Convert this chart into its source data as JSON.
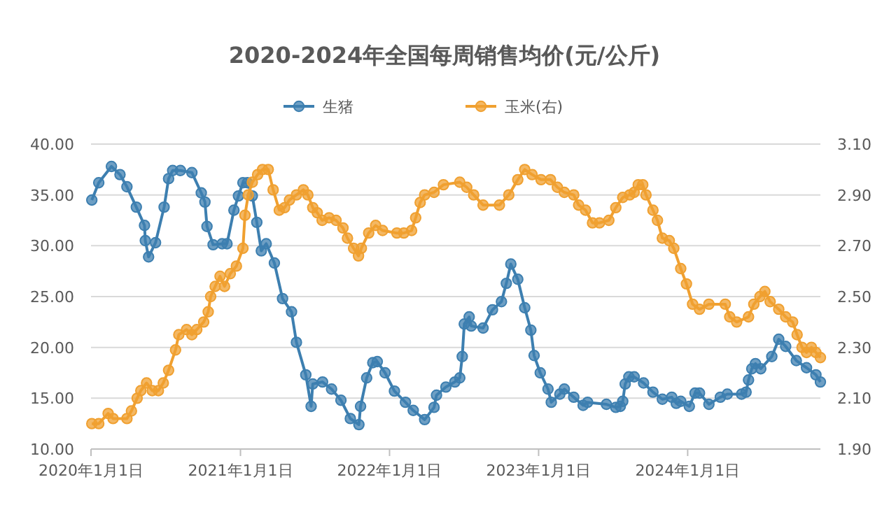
{
  "chart_data": {
    "type": "line",
    "title": "2020-2024年全国每周销售均价(元/公斤)",
    "legend": "top",
    "grid": "y",
    "marker": "circle",
    "line_style": "solid",
    "xlim": [
      "2020-01-01",
      "2024-11-21"
    ],
    "xticks": [
      {
        "value": "2020-01-01",
        "label": "2020年1月1日"
      },
      {
        "value": "2021-01-01",
        "label": "2021年1月1日"
      },
      {
        "value": "2022-01-01",
        "label": "2022年1月1日"
      },
      {
        "value": "2023-01-01",
        "label": "2023年1月1日"
      },
      {
        "value": "2024-01-01",
        "label": "2024年1月1日"
      }
    ],
    "ylim": [
      10,
      40
    ],
    "yticks": [
      {
        "value": 10,
        "label": "10.00"
      },
      {
        "value": 15,
        "label": "15.00"
      },
      {
        "value": 20,
        "label": "20.00"
      },
      {
        "value": 25,
        "label": "25.00"
      },
      {
        "value": 30,
        "label": "30.00"
      },
      {
        "value": 35,
        "label": "35.00"
      },
      {
        "value": 40,
        "label": "40.00"
      }
    ],
    "y2lim": [
      1.9,
      3.1
    ],
    "y2ticks": [
      {
        "value": 1.9,
        "label": "1.90"
      },
      {
        "value": 2.1,
        "label": "2.10"
      },
      {
        "value": 2.3,
        "label": "2.30"
      },
      {
        "value": 2.5,
        "label": "2.50"
      },
      {
        "value": 2.7,
        "label": "2.70"
      },
      {
        "value": 2.9,
        "label": "2.90"
      },
      {
        "value": 3.1,
        "label": "3.10"
      }
    ],
    "series": [
      {
        "name": "生猪",
        "color": "#3d7fb0",
        "x": [
          "2020-01-03",
          "2020-01-20",
          "2020-02-20",
          "2020-03-12",
          "2020-03-29",
          "2020-04-21",
          "2020-05-11",
          "2020-05-13",
          "2020-05-21",
          "2020-06-07",
          "2020-06-28",
          "2020-07-09",
          "2020-07-19",
          "2020-08-07",
          "2020-09-04",
          "2020-09-27",
          "2020-10-06",
          "2020-10-11",
          "2020-10-26",
          "2020-11-17",
          "2020-11-29",
          "2020-12-16",
          "2020-12-27",
          "2021-01-07",
          "2021-01-18",
          "2021-01-30",
          "2021-02-10",
          "2021-02-21",
          "2021-03-05",
          "2021-03-25",
          "2021-04-14",
          "2021-05-06",
          "2021-05-18",
          "2021-06-10",
          "2021-06-23",
          "2021-06-27",
          "2021-07-21",
          "2021-08-12",
          "2021-09-04",
          "2021-09-27",
          "2021-10-18",
          "2021-10-22",
          "2021-11-06",
          "2021-11-21",
          "2021-12-02",
          "2021-12-21",
          "2022-01-13",
          "2022-02-09",
          "2022-02-28",
          "2022-03-28",
          "2022-04-20",
          "2022-04-26",
          "2022-05-19",
          "2022-06-10",
          "2022-06-22",
          "2022-06-28",
          "2022-07-03",
          "2022-07-15",
          "2022-07-20",
          "2022-08-18",
          "2022-09-10",
          "2022-10-02",
          "2022-10-14",
          "2022-10-25",
          "2022-11-11",
          "2022-11-28",
          "2022-12-13",
          "2022-12-21",
          "2023-01-05",
          "2023-01-24",
          "2023-02-01",
          "2023-02-22",
          "2023-03-05",
          "2023-03-28",
          "2023-04-20",
          "2023-05-01",
          "2023-06-16",
          "2023-07-09",
          "2023-07-20",
          "2023-07-26",
          "2023-08-01",
          "2023-08-10",
          "2023-08-23",
          "2023-09-15",
          "2023-10-08",
          "2023-10-31",
          "2023-11-23",
          "2023-12-04",
          "2023-12-15",
          "2024-01-05",
          "2024-01-19",
          "2024-01-30",
          "2024-02-22",
          "2024-03-21",
          "2024-04-07",
          "2024-05-12",
          "2024-05-23",
          "2024-05-29",
          "2024-06-06",
          "2024-06-15",
          "2024-06-28",
          "2024-07-25",
          "2024-08-11",
          "2024-08-28",
          "2024-09-23",
          "2024-10-18",
          "2024-11-10",
          "2024-11-21"
        ],
        "values": [
          34.5,
          36.2,
          37.8,
          37.0,
          35.8,
          33.8,
          32.0,
          30.5,
          28.9,
          30.3,
          33.8,
          36.6,
          37.4,
          37.4,
          37.2,
          35.2,
          34.3,
          31.9,
          30.1,
          30.2,
          30.2,
          33.5,
          34.9,
          36.2,
          36.2,
          34.9,
          32.3,
          29.5,
          30.2,
          28.3,
          24.8,
          23.5,
          20.5,
          17.3,
          14.2,
          16.4,
          16.6,
          15.9,
          14.8,
          13.0,
          12.4,
          14.2,
          17.0,
          18.5,
          18.6,
          17.5,
          15.7,
          14.6,
          13.8,
          12.9,
          14.1,
          15.3,
          16.1,
          16.6,
          17.0,
          19.1,
          22.3,
          23.0,
          22.1,
          21.9,
          23.7,
          24.5,
          26.3,
          28.2,
          26.7,
          23.9,
          21.7,
          19.2,
          17.5,
          15.9,
          14.6,
          15.4,
          15.9,
          15.1,
          14.3,
          14.6,
          14.4,
          14.1,
          14.2,
          14.7,
          16.4,
          17.1,
          17.1,
          16.5,
          15.6,
          14.9,
          15.1,
          14.5,
          14.7,
          14.2,
          15.5,
          15.5,
          14.4,
          15.1,
          15.4,
          15.4,
          15.6,
          16.8,
          17.9,
          18.4,
          17.9,
          19.1,
          20.8,
          20.1,
          18.7,
          18.0,
          17.3,
          16.6
        ]
      },
      {
        "name": "玉米(右)",
        "color": "#f0a030",
        "axis": "y2",
        "x": [
          "2020-01-03",
          "2020-01-20",
          "2020-02-12",
          "2020-02-24",
          "2020-03-29",
          "2020-04-09",
          "2020-04-23",
          "2020-05-02",
          "2020-05-16",
          "2020-05-30",
          "2020-06-14",
          "2020-06-26",
          "2020-07-09",
          "2020-07-26",
          "2020-08-03",
          "2020-08-22",
          "2020-09-04",
          "2020-09-16",
          "2020-10-03",
          "2020-10-14",
          "2020-10-20",
          "2020-10-31",
          "2020-11-12",
          "2020-11-23",
          "2020-12-07",
          "2020-12-22",
          "2021-01-07",
          "2021-01-12",
          "2021-01-20",
          "2021-01-30",
          "2021-02-12",
          "2021-02-24",
          "2021-03-10",
          "2021-03-22",
          "2021-04-06",
          "2021-04-19",
          "2021-05-01",
          "2021-05-18",
          "2021-06-04",
          "2021-06-15",
          "2021-06-27",
          "2021-07-08",
          "2021-07-20",
          "2021-08-06",
          "2021-08-23",
          "2021-09-09",
          "2021-09-20",
          "2021-10-05",
          "2021-10-17",
          "2021-10-24",
          "2021-11-11",
          "2021-11-28",
          "2021-12-15",
          "2022-01-19",
          "2022-02-05",
          "2022-02-24",
          "2022-03-06",
          "2022-03-17",
          "2022-03-28",
          "2022-04-20",
          "2022-05-13",
          "2022-06-22",
          "2022-07-09",
          "2022-07-26",
          "2022-08-18",
          "2022-09-27",
          "2022-10-20",
          "2022-11-11",
          "2022-11-28",
          "2022-12-16",
          "2023-01-07",
          "2023-01-30",
          "2023-02-16",
          "2023-03-05",
          "2023-03-28",
          "2023-04-09",
          "2023-04-26",
          "2023-05-13",
          "2023-05-30",
          "2023-06-22",
          "2023-07-09",
          "2023-07-26",
          "2023-08-12",
          "2023-08-23",
          "2023-09-02",
          "2023-09-13",
          "2023-09-21",
          "2023-10-08",
          "2023-10-19",
          "2023-10-31",
          "2023-11-17",
          "2023-11-28",
          "2023-12-15",
          "2023-12-29",
          "2024-01-13",
          "2024-01-30",
          "2024-02-22",
          "2024-04-02",
          "2024-04-13",
          "2024-04-30",
          "2024-05-29",
          "2024-06-11",
          "2024-06-26",
          "2024-07-08",
          "2024-07-21",
          "2024-08-11",
          "2024-08-28",
          "2024-09-14",
          "2024-09-25",
          "2024-10-07",
          "2024-10-18",
          "2024-10-30",
          "2024-11-10",
          "2024-11-21"
        ],
        "values": [
          2.0,
          2.0,
          2.04,
          2.02,
          2.02,
          2.05,
          2.1,
          2.13,
          2.16,
          2.13,
          2.13,
          2.16,
          2.21,
          2.29,
          2.35,
          2.37,
          2.35,
          2.37,
          2.4,
          2.44,
          2.5,
          2.54,
          2.58,
          2.54,
          2.59,
          2.62,
          2.69,
          2.82,
          2.9,
          2.95,
          2.98,
          3.0,
          3.0,
          2.92,
          2.84,
          2.85,
          2.88,
          2.9,
          2.92,
          2.9,
          2.85,
          2.83,
          2.8,
          2.81,
          2.8,
          2.77,
          2.73,
          2.69,
          2.66,
          2.69,
          2.75,
          2.78,
          2.76,
          2.75,
          2.75,
          2.76,
          2.81,
          2.87,
          2.9,
          2.91,
          2.94,
          2.95,
          2.93,
          2.9,
          2.86,
          2.86,
          2.9,
          2.96,
          3.0,
          2.98,
          2.96,
          2.96,
          2.93,
          2.91,
          2.9,
          2.86,
          2.84,
          2.79,
          2.79,
          2.8,
          2.85,
          2.89,
          2.9,
          2.91,
          2.94,
          2.94,
          2.9,
          2.84,
          2.8,
          2.73,
          2.72,
          2.69,
          2.61,
          2.55,
          2.47,
          2.45,
          2.47,
          2.47,
          2.42,
          2.4,
          2.42,
          2.47,
          2.5,
          2.52,
          2.48,
          2.45,
          2.42,
          2.4,
          2.35,
          2.3,
          2.28,
          2.3,
          2.28,
          2.26
        ]
      }
    ]
  }
}
